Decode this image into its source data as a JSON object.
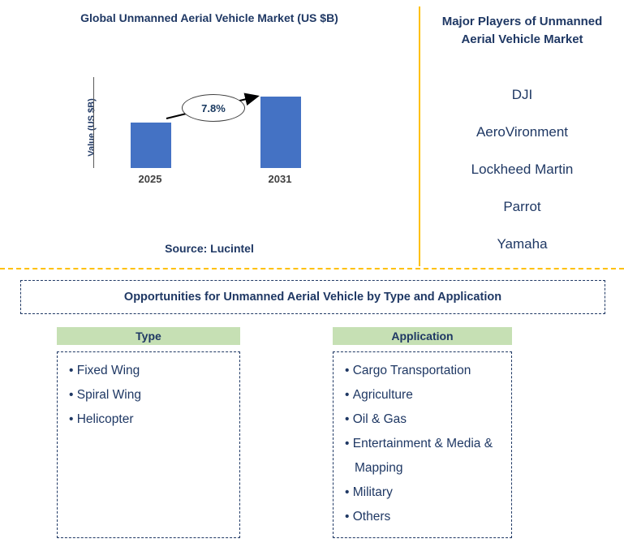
{
  "chart": {
    "title": "Global Unmanned Aerial Vehicle Market (US $B)",
    "y_axis_label": "Value (US $B)",
    "growth_label": "7.8%",
    "source": "Source: Lucintel"
  },
  "chart_data": {
    "type": "bar",
    "title": "Global Unmanned Aerial Vehicle Market (US $B)",
    "categories": [
      "2025",
      "2031"
    ],
    "values": [
      100,
      157
    ],
    "xlabel": "",
    "ylabel": "Value (US $B)",
    "annotations": [
      "7.8% growth arrow from 2025 bar to 2031 bar"
    ],
    "bar_color": "#4472C4",
    "note": "No numeric y-axis tick labels shown; values are relative bar heights implying 7.8% CAGR 2025-2031",
    "legend": "none",
    "grid": "off"
  },
  "players": {
    "title": "Major Players of Unmanned Aerial Vehicle Market",
    "items": [
      "DJI",
      "AeroVironment",
      "Lockheed Martin",
      "Parrot",
      "Yamaha"
    ]
  },
  "opportunities": {
    "title": "Opportunities for Unmanned Aerial Vehicle by Type and Application"
  },
  "type": {
    "header": "Type",
    "items": [
      "Fixed Wing",
      "Spiral Wing",
      "Helicopter"
    ]
  },
  "application": {
    "header": "Application",
    "items": [
      "Cargo Transportation",
      "Agriculture",
      "Oil & Gas",
      "Entertainment & Media & Mapping",
      "Military",
      "Others"
    ]
  },
  "colors": {
    "text_navy": "#1F3864",
    "bar_blue": "#4472C4",
    "header_green": "#C6E0B4",
    "divider_gold": "#FFC000"
  }
}
